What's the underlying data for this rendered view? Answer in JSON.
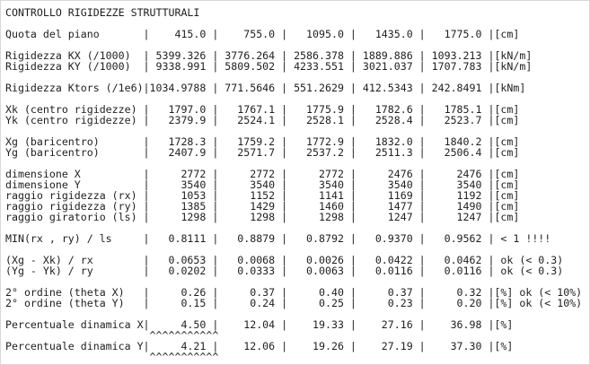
{
  "lines": [
    "CONTROLLO RIGIDEZZE STRUTTURALI",
    "Quota del piano       |    415.0 |    755.0 |   1095.0 |   1435.0 |   1775.0 |[cm]",
    "Rigidezza KX (/1000)  | 5399.326 | 3776.264 | 2586.378 | 1889.886 | 1093.213 |[kN/m]",
    "Rigidezza KY (/1000)  | 9338.991 | 5809.502 | 4233.551 | 3021.037 | 1707.783 |[kN/m]",
    "Rigidezza Ktors (/1e6)|1034.9788 | 771.5646 | 551.2629 | 412.5343 | 242.8491 |[kNm]",
    "Xk (centro rigidezze) |   1797.0 |   1767.1 |   1775.9 |   1782.6 |   1785.1 |[cm]",
    "Yk (centro rigidezze) |   2379.9 |   2524.1 |   2528.1 |   2528.4 |   2523.7 |[cm]",
    "Xg (baricentro)       |   1728.3 |   1759.2 |   1772.9 |   1832.0 |   1840.2 |[cm]",
    "Yg (baricentro)       |   2407.9 |   2571.7 |   2537.2 |   2511.3 |   2506.4 |[cm]",
    "dimensione X          |     2772 |     2772 |     2772 |     2476 |     2476 |[cm]",
    "dimensione Y          |     3540 |     3540 |     3540 |     3540 |     3540 |[cm]",
    "raggio rigidezza (rx) |     1053 |     1152 |     1141 |     1169 |     1192 |[cm]",
    "raggio rigidezza (ry) |     1385 |     1429 |     1460 |     1477 |     1490 |[cm]",
    "raggio giratorio (ls) |     1298 |     1298 |     1298 |     1247 |     1247 |[cm]",
    "MIN(rx , ry) / ls     |   0.8111 |   0.8879 |   0.8792 |   0.9370 |   0.9562 | < 1 !!!!",
    "(Xg - Xk) / rx        |   0.0653 |   0.0068 |   0.0026 |   0.0422 |   0.0462 | ok (< 0.3)",
    "(Yg - Yk) / ry        |   0.0202 |   0.0333 |   0.0063 |   0.0116 |   0.0116 | ok (< 0.3)",
    "2° ordine (theta X)   |     0.26 |     0.37 |     0.40 |     0.37 |     0.32 |[%] ok (< 10%)",
    "2° ordine (theta Y)   |     0.15 |     0.24 |     0.25 |     0.23 |     0.20 |[%] ok (< 10%)",
    "Percentuale dinamica X|     4.50 |    12.04 |    19.33 |    27.16 |    36.98 |[%]",
    "                       ^^^^^^^^^^^",
    "Percentuale dinamica Y|     4.21 |    12.06 |    19.26 |    27.19 |    37.30 |[%]",
    "                       ^^^^^^^^^^^"
  ]
}
